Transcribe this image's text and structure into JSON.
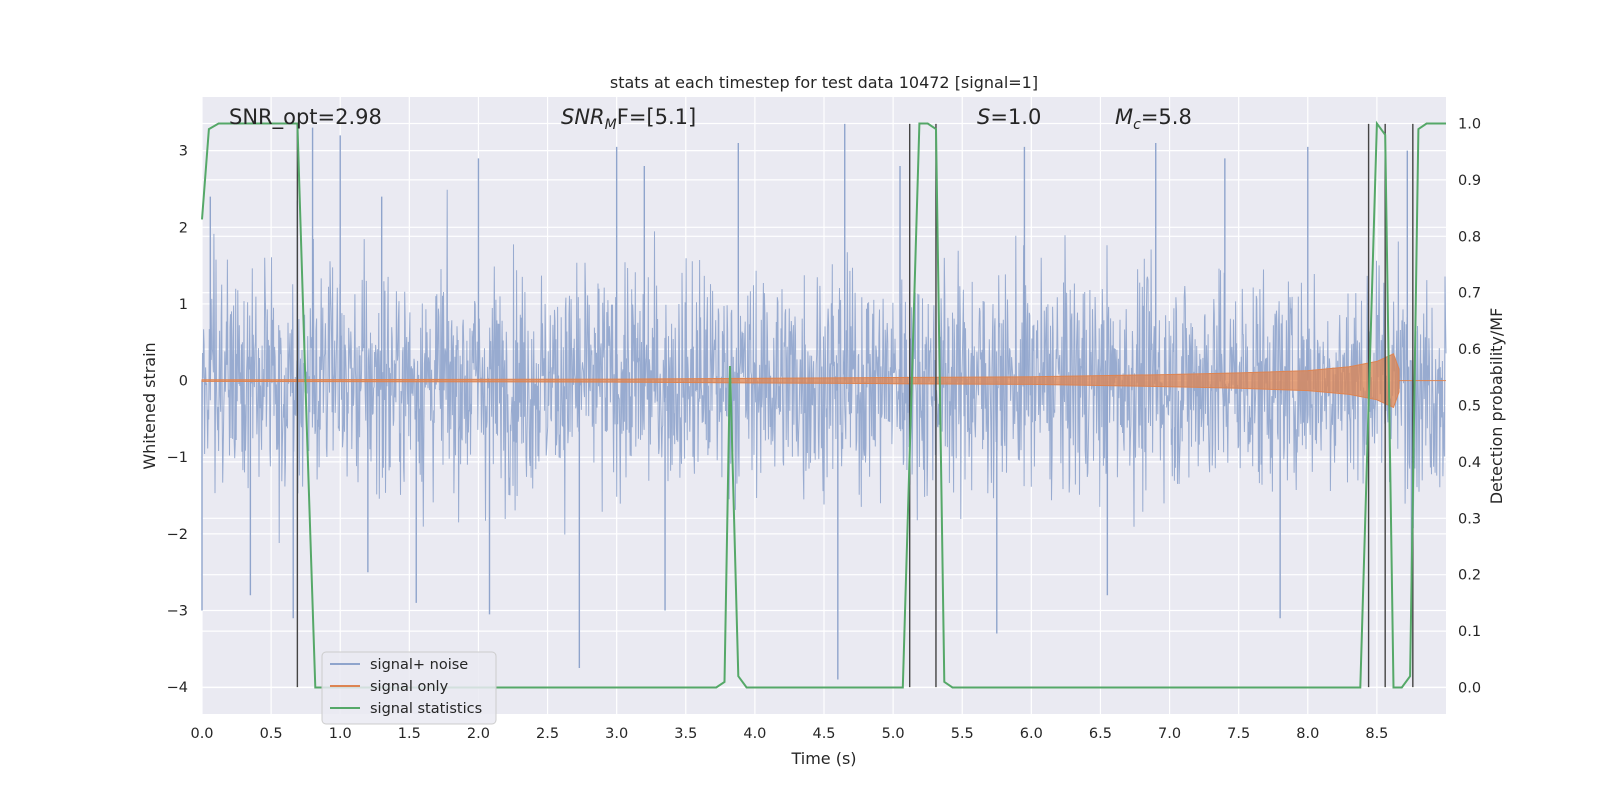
{
  "chart_data": {
    "type": "line",
    "title": "stats at each timestep for test data 10472 [signal=1]",
    "xlabel": "Time (s)",
    "ylabel": "Whitened strain",
    "ylabel_right": "Detection probability/MF",
    "xlim": [
      0.0,
      9.0
    ],
    "ylim": [
      -4.35,
      3.7
    ],
    "ylim_right": [
      -0.047,
      1.047
    ],
    "x_ticks": [
      0.0,
      0.5,
      1.0,
      1.5,
      2.0,
      2.5,
      3.0,
      3.5,
      4.0,
      4.5,
      5.0,
      5.5,
      6.0,
      6.5,
      7.0,
      7.5,
      8.0,
      8.5
    ],
    "x_tick_labels": [
      "0.0",
      "0.5",
      "1.0",
      "1.5",
      "2.0",
      "2.5",
      "3.0",
      "3.5",
      "4.0",
      "4.5",
      "5.0",
      "5.5",
      "6.0",
      "6.5",
      "7.0",
      "7.5",
      "8.0",
      "8.5"
    ],
    "y_ticks": [
      3,
      2,
      1,
      0,
      -1,
      -2,
      -3,
      -4
    ],
    "y_tick_labels": [
      "3",
      "2",
      "1",
      "0",
      "−1",
      "−2",
      "−3",
      "−4"
    ],
    "y_right_ticks": [
      1.0,
      0.9,
      0.8,
      0.7,
      0.6,
      0.5,
      0.4,
      0.3,
      0.2,
      0.1,
      0.0
    ],
    "y_right_tick_labels": [
      "1.0",
      "0.9",
      "0.8",
      "0.7",
      "0.6",
      "0.5",
      "0.4",
      "0.3",
      "0.2",
      "0.1",
      "0.0"
    ],
    "grid": true,
    "legend_position": "lower-left",
    "annotations": {
      "snr_opt": "SNR_opt=2.98",
      "snr_mf_base": "SNR",
      "snr_mf_sub": "M",
      "snr_mf_tail": "F=[5.1]",
      "s_base": "S",
      "s_tail": "=1.0",
      "mc_base": "M",
      "mc_sub": "c",
      "mc_tail": "=5.8"
    },
    "series": [
      {
        "name": "signal+ noise",
        "color": "#8fa4cc",
        "envelope_amplitude_approx": 2.0,
        "envelope_peaks": [
          {
            "x": 0.06,
            "y": 2.4
          },
          {
            "x": 0.69,
            "y": 2.35
          },
          {
            "x": 0.8,
            "y": 3.3
          },
          {
            "x": 1.0,
            "y": 3.2
          },
          {
            "x": 1.3,
            "y": 2.4
          },
          {
            "x": 2.0,
            "y": 2.9
          },
          {
            "x": 3.0,
            "y": 3.05
          },
          {
            "x": 3.2,
            "y": 2.8
          },
          {
            "x": 3.88,
            "y": 3.1
          },
          {
            "x": 4.65,
            "y": 3.35
          },
          {
            "x": 5.05,
            "y": 2.8
          },
          {
            "x": 5.95,
            "y": 3.05
          },
          {
            "x": 6.9,
            "y": 3.1
          },
          {
            "x": 7.4,
            "y": 2.9
          },
          {
            "x": 8.0,
            "y": 3.05
          },
          {
            "x": 8.72,
            "y": 3.0
          },
          {
            "x": 0.0,
            "y": -3.0
          },
          {
            "x": 0.35,
            "y": -2.8
          },
          {
            "x": 0.66,
            "y": -3.1
          },
          {
            "x": 1.2,
            "y": -2.5
          },
          {
            "x": 1.55,
            "y": -2.9
          },
          {
            "x": 2.08,
            "y": -3.05
          },
          {
            "x": 2.73,
            "y": -3.75
          },
          {
            "x": 3.35,
            "y": -3.0
          },
          {
            "x": 4.6,
            "y": -3.9
          },
          {
            "x": 5.75,
            "y": -3.3
          },
          {
            "x": 6.55,
            "y": -2.8
          },
          {
            "x": 7.8,
            "y": -3.1
          },
          {
            "x": 8.75,
            "y": -2.6
          }
        ]
      },
      {
        "name": "signal only",
        "color": "#dd8452",
        "envelope": [
          {
            "x": 0.0,
            "y": 0.01
          },
          {
            "x": 3.0,
            "y": 0.02
          },
          {
            "x": 5.0,
            "y": 0.04
          },
          {
            "x": 6.0,
            "y": 0.05
          },
          {
            "x": 7.0,
            "y": 0.08
          },
          {
            "x": 7.5,
            "y": 0.1
          },
          {
            "x": 8.0,
            "y": 0.13
          },
          {
            "x": 8.3,
            "y": 0.18
          },
          {
            "x": 8.5,
            "y": 0.25
          },
          {
            "x": 8.62,
            "y": 0.35
          },
          {
            "x": 8.66,
            "y": 0.15
          }
        ]
      },
      {
        "name": "signal statistics",
        "color": "#55a868",
        "axis": "right",
        "x": [
          0.0,
          0.05,
          0.12,
          0.69,
          0.76,
          0.82,
          3.72,
          3.78,
          3.82,
          3.88,
          3.94,
          5.07,
          5.13,
          5.19,
          5.25,
          5.31,
          5.37,
          5.43,
          8.38,
          8.44,
          8.5,
          8.56,
          8.62,
          8.68,
          8.74,
          8.8,
          8.86,
          9.0
        ],
        "y": [
          0.83,
          0.99,
          1.0,
          1.0,
          0.45,
          0.0,
          0.0,
          0.01,
          0.57,
          0.02,
          0.0,
          0.0,
          0.5,
          1.0,
          1.0,
          0.99,
          0.01,
          0.0,
          0.0,
          0.5,
          1.0,
          0.98,
          0.0,
          0.0,
          0.02,
          0.99,
          1.0,
          1.0
        ]
      }
    ],
    "vertical_markers": {
      "color": "#444444",
      "x": [
        0.69,
        5.12,
        5.31,
        8.44,
        8.56,
        8.76
      ],
      "y_from": -4.0,
      "y_to": 3.35
    }
  }
}
